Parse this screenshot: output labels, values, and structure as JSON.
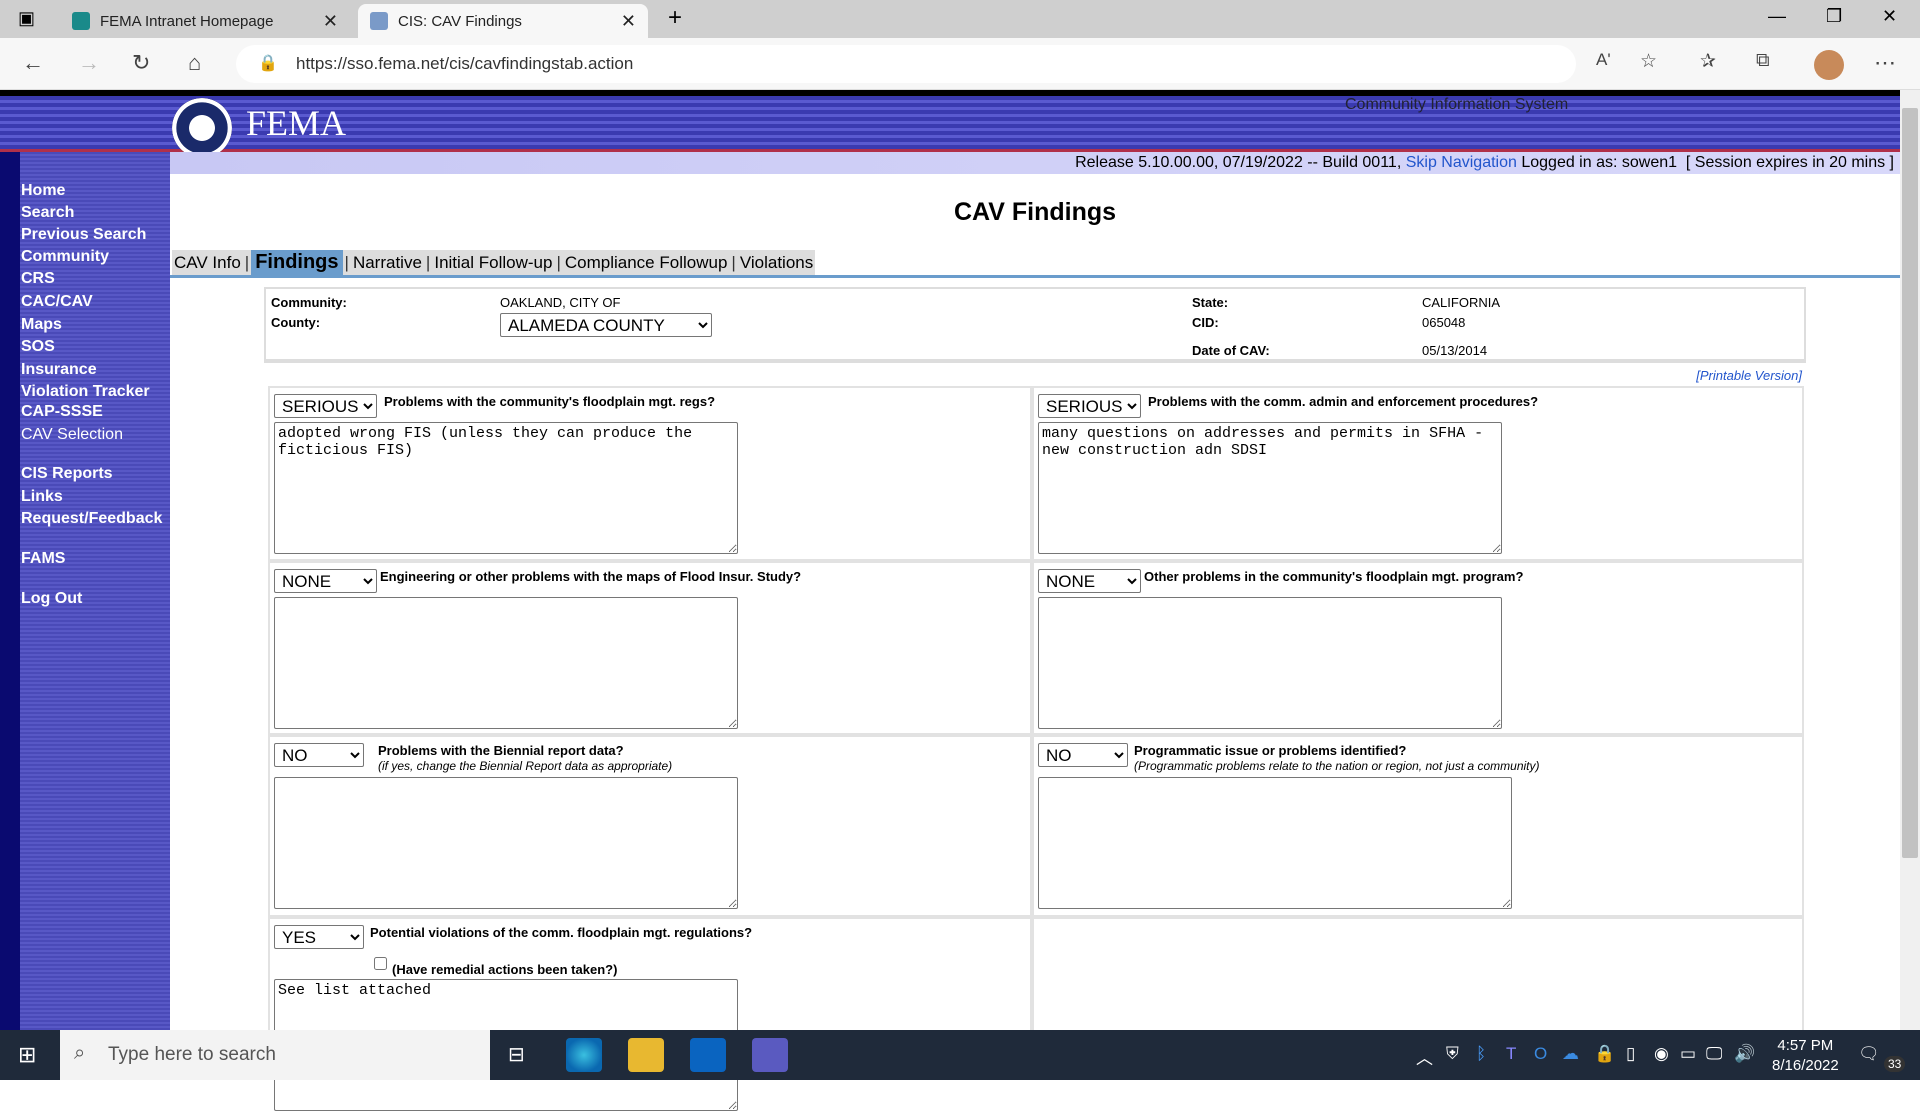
{
  "browser": {
    "tabs": [
      {
        "title": "FEMA Intranet Homepage",
        "active": false
      },
      {
        "title": "CIS: CAV Findings",
        "active": true
      }
    ],
    "url": "https://sso.fema.net/cis/cavfindingstab.action"
  },
  "header": {
    "logo_text": "FEMA",
    "system_name": "Community Information System",
    "release": "Release 5.10.00.00, 07/19/2022 -- Build 0011,",
    "skip_nav": "Skip Navigation",
    "logged_in": "Logged in as: sowen1",
    "session": "[ Session expires in 20 mins ]"
  },
  "sidebar": {
    "items": [
      "Home",
      "Search",
      "Previous Search",
      "Community",
      "CRS",
      "CAC/CAV",
      "Maps",
      "SOS",
      "Insurance",
      "Violation Tracker",
      "CAP-SSSE",
      "CAV Selection",
      "CIS Reports",
      "Links",
      "Request/Feedback",
      "FAMS",
      "Log Out"
    ]
  },
  "page": {
    "title": "CAV Findings",
    "tabs": [
      "CAV Info",
      "Findings",
      "Narrative",
      "Initial Follow-up",
      "Compliance Followup",
      "Violations"
    ],
    "active_tab": "Findings"
  },
  "info": {
    "community_label": "Community:",
    "community": "OAKLAND, CITY OF",
    "county_label": "County:",
    "county": "ALAMEDA COUNTY",
    "state_label": "State:",
    "state": "CALIFORNIA",
    "cid_label": "CID:",
    "cid": "065048",
    "date_label": "Date of CAV:",
    "date": "05/13/2014"
  },
  "printable": "[Printable Version]",
  "findings": [
    {
      "severity": "SERIOUS",
      "question": "Problems with the community's floodplain mgt. regs?",
      "text": "adopted wrong FIS (unless they can produce the ficticious FIS)"
    },
    {
      "severity": "SERIOUS",
      "question": "Problems with the comm. admin and enforcement procedures?",
      "text": "many questions on addresses and permits in SFHA - new construction adn SDSI"
    },
    {
      "severity": "NONE",
      "question": "Engineering or other problems with the maps of Flood Insur. Study?",
      "text": ""
    },
    {
      "severity": "NONE",
      "question": "Other problems in the community's floodplain mgt. program?",
      "text": ""
    },
    {
      "severity": "NO",
      "question": "Problems with the Biennial report data?",
      "note": "(if yes, change the Biennial Report data as appropriate)",
      "text": ""
    },
    {
      "severity": "NO",
      "question": "Programmatic issue or problems identified?",
      "note": "(Programmatic problems relate to the nation or region, not just a community)",
      "text": ""
    },
    {
      "severity": "YES",
      "question": "Potential violations of the comm. floodplain mgt. regulations?",
      "checkbox_label": "(Have remedial actions been taken?)",
      "checked": false,
      "text": "See list attached"
    }
  ],
  "taskbar": {
    "search_placeholder": "Type here to search",
    "time": "4:57 PM",
    "date": "8/16/2022",
    "notifications": "33"
  }
}
